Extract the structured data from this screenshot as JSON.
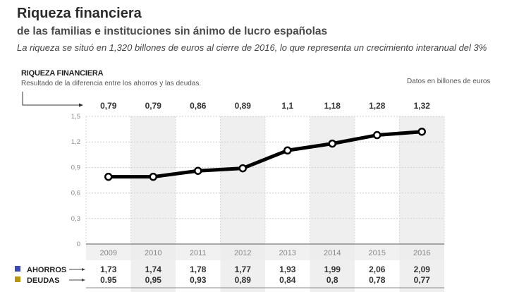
{
  "header": {
    "title": "Riqueza financiera",
    "subtitle": "de las familias e instituciones sin ánimo de lucro españolas",
    "lede": "La riqueza se situó en 1,320 billones de euros al cierre de 2016, lo que representa un crecimiento interanual del 3%"
  },
  "section": {
    "title": "RIQUEZA FINANCIERA",
    "description": "Resultado de la diferencia entre los ahorros y las deudas.",
    "units": "Datos en billones de euros"
  },
  "colors": {
    "line": "#000000",
    "shade": "#efefef",
    "ahorros": "#3b4bb5",
    "deudas": "#b8960f"
  },
  "chart_data": {
    "type": "line",
    "title": "RIQUEZA FINANCIERA",
    "subtitle": "Resultado de la diferencia entre los ahorros y las deudas.",
    "units": "Datos en billones de euros",
    "xlabel": "",
    "ylabel": "",
    "categories": [
      "2009",
      "2010",
      "2011",
      "2012",
      "2013",
      "2014",
      "2015",
      "2016"
    ],
    "series": [
      {
        "name": "Riqueza financiera",
        "values": [
          0.79,
          0.79,
          0.86,
          0.89,
          1.1,
          1.18,
          1.28,
          1.32
        ],
        "labels": [
          "0,79",
          "0,79",
          "0,86",
          "0,89",
          "1,1",
          "1,18",
          "1,28",
          "1,32"
        ]
      }
    ],
    "ylim": [
      0,
      1.5
    ],
    "yticks": [
      0,
      0.3,
      0.6,
      0.9,
      1.2,
      1.5
    ],
    "ytick_labels": [
      "0",
      "0,3",
      "0,6",
      "0,9",
      "1,2",
      "1,5"
    ],
    "grid": true,
    "table": [
      {
        "name": "AHORROS",
        "values": [
          "1,73",
          "1,74",
          "1,78",
          "1,77",
          "1,93",
          "1,99",
          "2,06",
          "2,09"
        ]
      },
      {
        "name": "DEUDAS",
        "values": [
          "0.95",
          "0,95",
          "0,93",
          "0,89",
          "0,84",
          "0,8",
          "0,78",
          "0,77"
        ]
      }
    ],
    "legend": "bottom-left"
  }
}
